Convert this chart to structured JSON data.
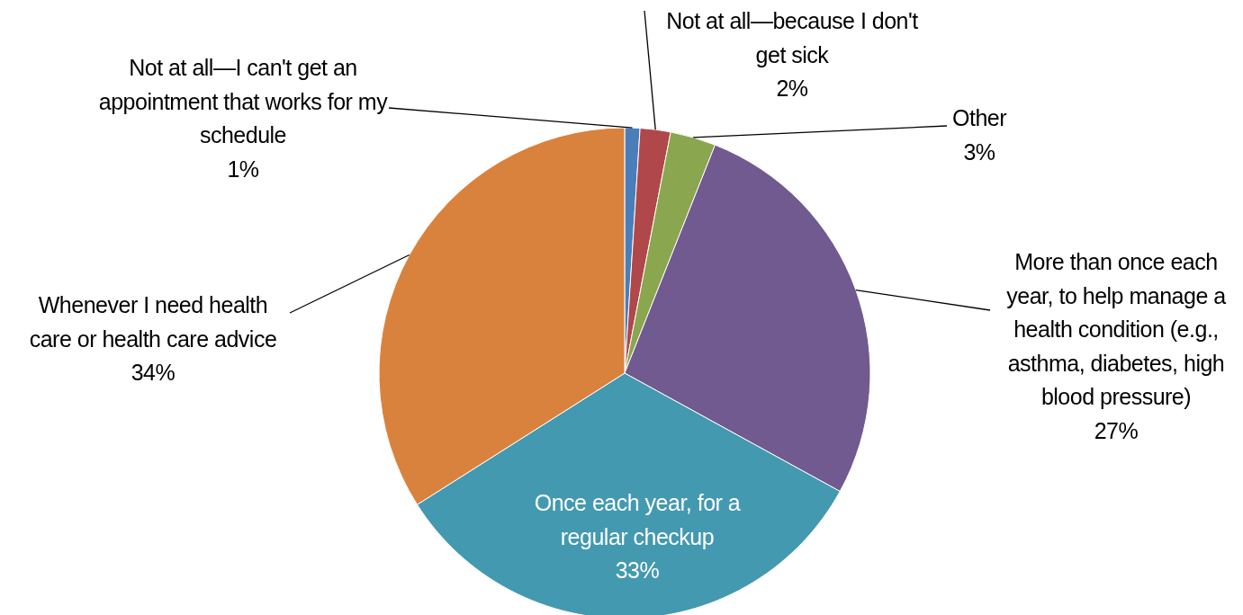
{
  "chart_data": {
    "type": "pie",
    "categories": [
      "Not at all—I can't get an appointment that works for my schedule",
      "Not at all—because I don't get sick",
      "Other",
      "More than once each year, to help manage a health condition (e.g., asthma, diabetes, high blood pressure)",
      "Once each year, for a regular checkup",
      "Whenever I need health care or health care advice"
    ],
    "values": [
      1,
      2,
      3,
      27,
      33,
      34
    ],
    "value_labels": [
      "1%",
      "2%",
      "3%",
      "27%",
      "33%",
      "34%"
    ],
    "colors": [
      "#4a7ebb",
      "#b0474a",
      "#8aa64e",
      "#715a8f",
      "#4399b0",
      "#d9823e"
    ]
  }
}
